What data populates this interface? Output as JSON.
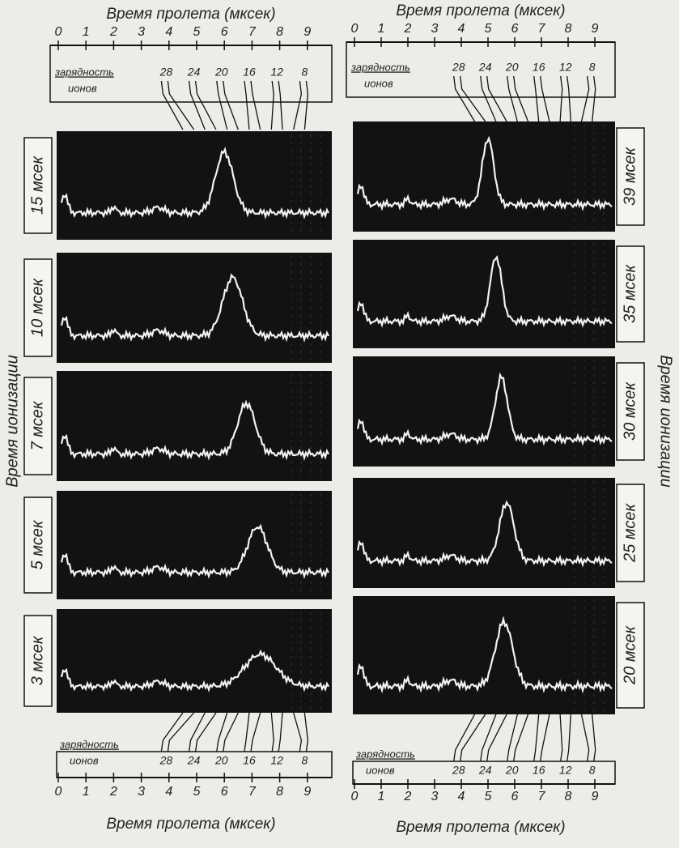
{
  "left_column": {
    "top_axis": {
      "title": "Время пролета (мксек)",
      "ticks": [
        0,
        1,
        2,
        3,
        4,
        5,
        6,
        7,
        8,
        9
      ]
    },
    "top_charge": {
      "label_1": "зарядность",
      "label_2": "ионов",
      "values": [
        28,
        24,
        20,
        16,
        12,
        8
      ]
    },
    "panels": [
      "15 мсек",
      "10 мсек",
      "7 мсек",
      "5 мсек",
      "3 мсек"
    ],
    "bottom_charge": {
      "label_1": "зарядность",
      "label_2": "ионов",
      "values": [
        28,
        24,
        20,
        16,
        12,
        8
      ]
    },
    "bottom_axis": {
      "title": "Время пролета (мксек)",
      "ticks": [
        0,
        1,
        2,
        3,
        4,
        5,
        6,
        7,
        8,
        9
      ]
    }
  },
  "right_column": {
    "top_axis": {
      "title": "Время пролета (мксек)",
      "ticks": [
        0,
        1,
        2,
        3,
        4,
        5,
        6,
        7,
        8,
        9
      ]
    },
    "top_charge": {
      "label_1": "зарядность",
      "label_2": "ионов",
      "values": [
        28,
        24,
        20,
        16,
        12,
        8
      ]
    },
    "panels": [
      "39 мсек",
      "35 мсек",
      "30 мсек",
      "25 мсек",
      "20 мсек"
    ],
    "bottom_charge": {
      "label_1": "зарядность",
      "label_2": "ионов",
      "values": [
        28,
        24,
        20,
        16,
        12,
        8
      ]
    },
    "bottom_axis": {
      "title": "Время пролета (мксек)",
      "ticks": [
        0,
        1,
        2,
        3,
        4,
        5,
        6,
        7,
        8,
        9
      ]
    }
  },
  "side_label_left": "Время ионизации",
  "side_label_right": "Время ионизации"
}
